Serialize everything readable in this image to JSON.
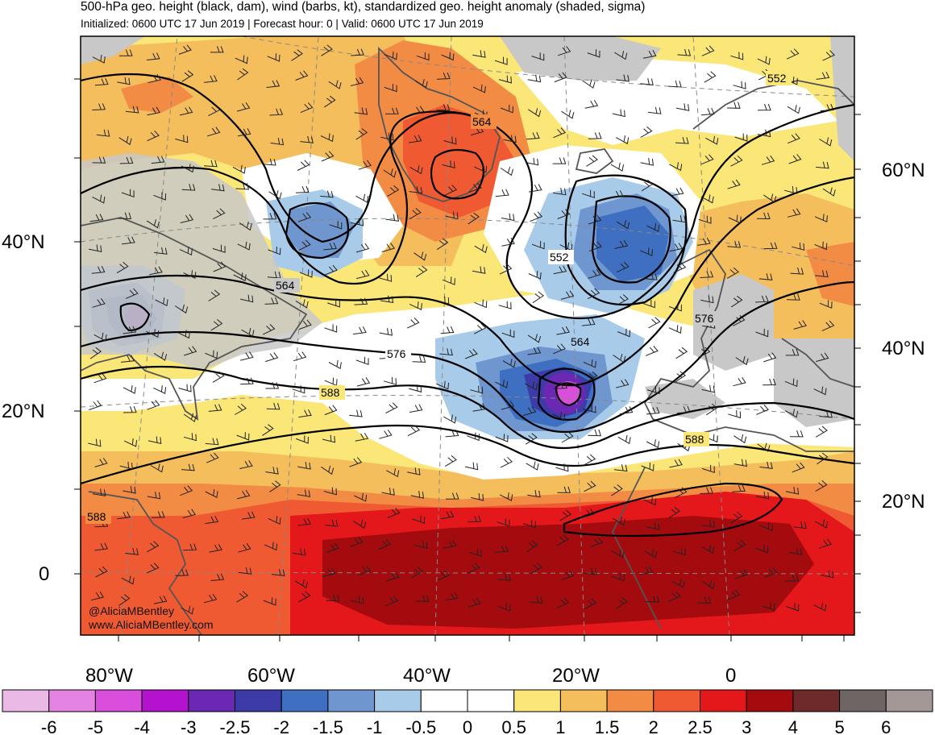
{
  "header": {
    "title": "500-hPa geo. height (black, dam), wind (barbs, kt), standardized geo. height anomaly (shaded, sigma)",
    "subtitle": "Initialized: 0600 UTC 17 Jun 2019 | Forecast hour: 0 | Valid: 0600 UTC 17 Jun 2019"
  },
  "axes": {
    "left_labels": [
      "40°N",
      "20°N",
      "0"
    ],
    "right_labels": [
      "60°N",
      "40°N",
      "20°N"
    ],
    "bottom_labels": [
      "80°W",
      "60°W",
      "40°W",
      "20°W",
      "0"
    ]
  },
  "contour_labels": [
    "552",
    "564",
    "552",
    "564",
    "564",
    "576",
    "576",
    "588",
    "588",
    "588"
  ],
  "credit": {
    "handle": "@AliciaMBentley",
    "website": "www.AliciaMBentley.com"
  },
  "colorbar": {
    "labels": [
      "-6",
      "-5",
      "-4",
      "-3",
      "-2.5",
      "-2",
      "-1.5",
      "-1",
      "-0.5",
      "0",
      "0.5",
      "1",
      "1.5",
      "2",
      "2.5",
      "3",
      "4",
      "5",
      "6"
    ],
    "colors": [
      "#ebb9e6",
      "#e483e2",
      "#d94fdc",
      "#b412cf",
      "#6b28b3",
      "#3d3ba8",
      "#3f6fc0",
      "#6f96cf",
      "#a9cbea",
      "#ffffff",
      "#ffffff",
      "#fbe678",
      "#f5be5c",
      "#f28c45",
      "#ef5a32",
      "#e4171a",
      "#a40b0e",
      "#6e2a2a",
      "#6e6664",
      "#a39896"
    ]
  },
  "colors": {
    "land_mask": "#c8c8c8",
    "coastline": "#555555",
    "contour": "#000000"
  }
}
